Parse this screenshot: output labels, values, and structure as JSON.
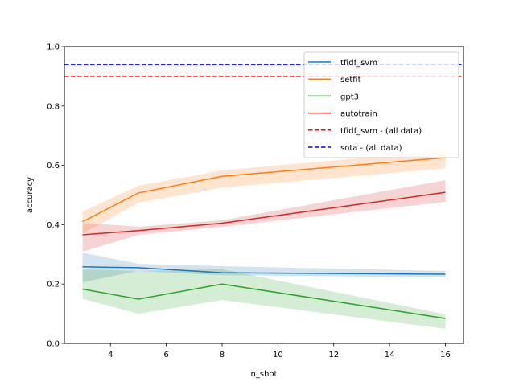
{
  "chart_data": {
    "type": "line",
    "title": "",
    "xlabel": "n_shot",
    "ylabel": "accuracy",
    "xlim": [
      2.35,
      16.65
    ],
    "ylim": [
      0.0,
      1.0
    ],
    "xticks": [
      4,
      6,
      8,
      10,
      12,
      14,
      16
    ],
    "xtick_labels": [
      "4",
      "6",
      "8",
      "10",
      "12",
      "14",
      "16"
    ],
    "yticks": [
      0.0,
      0.2,
      0.4,
      0.6,
      0.8,
      1.0
    ],
    "ytick_labels": [
      "0.0",
      "0.2",
      "0.4",
      "0.6",
      "0.8",
      "1.0"
    ],
    "grid": false,
    "legend_position": "top-right",
    "x": [
      3,
      5,
      8,
      16
    ],
    "series": [
      {
        "name": "tfidf_svm",
        "color": "#1f77b4",
        "style": "solid",
        "values": [
          0.258,
          0.255,
          0.238,
          0.233
        ],
        "lower": [
          0.206,
          0.244,
          0.23,
          0.222
        ],
        "upper": [
          0.306,
          0.268,
          0.26,
          0.244
        ]
      },
      {
        "name": "setfit",
        "color": "#ff7f0e",
        "style": "solid",
        "values": [
          0.41,
          0.507,
          0.563,
          0.626
        ],
        "lower": [
          0.37,
          0.474,
          0.525,
          0.59
        ],
        "upper": [
          0.444,
          0.531,
          0.583,
          0.65
        ]
      },
      {
        "name": "gpt3",
        "color": "#2ca02c",
        "style": "solid",
        "values": [
          0.183,
          0.149,
          0.2,
          0.084
        ],
        "lower": [
          0.15,
          0.1,
          0.146,
          0.049
        ],
        "upper": [
          0.249,
          0.244,
          0.25,
          0.098
        ]
      },
      {
        "name": "autotrain",
        "color": "#d62728",
        "style": "solid",
        "values": [
          0.366,
          0.38,
          0.405,
          0.509
        ],
        "lower": [
          0.309,
          0.366,
          0.393,
          0.477
        ],
        "upper": [
          0.407,
          0.393,
          0.415,
          0.55
        ]
      }
    ],
    "hlines": [
      {
        "name": "tfidf_svm - (all data)",
        "color": "#ff0000",
        "style": "dashed",
        "value": 0.9
      },
      {
        "name": "sota - (all data)",
        "color": "#0000ff",
        "style": "dashed",
        "value": 0.94
      }
    ],
    "legend": [
      "tfidf_svm",
      "setfit",
      "gpt3",
      "autotrain",
      "tfidf_svm - (all data)",
      "sota - (all data)"
    ]
  }
}
